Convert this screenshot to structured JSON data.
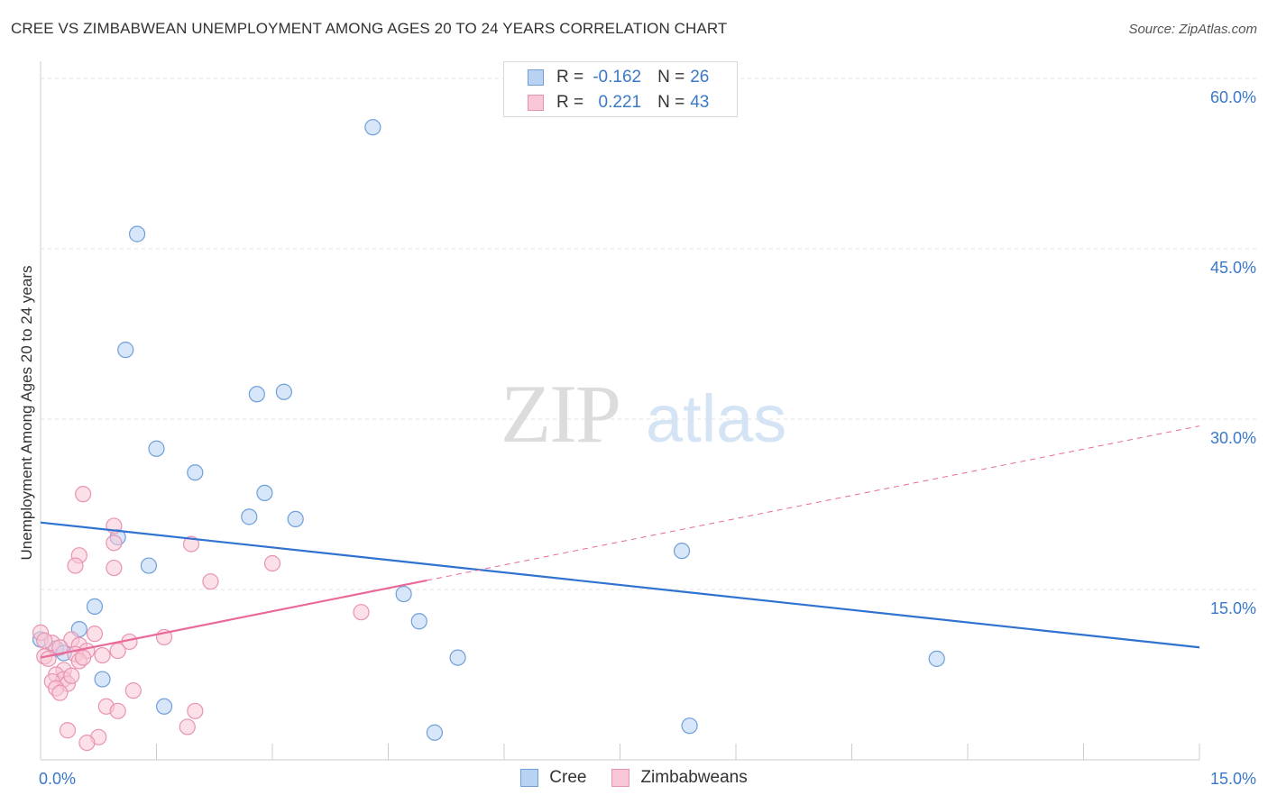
{
  "chart_data": {
    "type": "scatter",
    "title": "CREE VS ZIMBABWEAN UNEMPLOYMENT AMONG AGES 20 TO 24 YEARS CORRELATION CHART",
    "source": "Source: ZipAtlas.com",
    "xlabel": "",
    "ylabel": "Unemployment Among Ages 20 to 24 years",
    "xlim": [
      0,
      15
    ],
    "ylim": [
      0,
      62
    ],
    "x_tick_labels": [
      "0.0%",
      "15.0%"
    ],
    "y_ticks": [
      15,
      30,
      45,
      60
    ],
    "y_tick_labels": [
      "15.0%",
      "30.0%",
      "45.0%",
      "60.0%"
    ],
    "grid": true,
    "watermark": {
      "bold": "ZIP",
      "light": "atlas"
    },
    "legend": {
      "position": "top-center",
      "entries": [
        {
          "r_label": "R =",
          "r_value": "-0.162",
          "n_label": "N =",
          "n_value": "26"
        },
        {
          "r_label": "R =",
          "r_value": " 0.221",
          "n_label": "N =",
          "n_value": "43"
        }
      ]
    },
    "series": [
      {
        "name": "Cree",
        "fill": "#b7d2f3",
        "stroke": "#6f9fd8",
        "line_color": "#2f72d0",
        "trend": {
          "x0": 0,
          "y0": 20.9,
          "x1": 15,
          "y1": 9.9
        },
        "points": [
          {
            "x": 4.3,
            "y": 55.7
          },
          {
            "x": 1.25,
            "y": 46.3
          },
          {
            "x": 1.1,
            "y": 36.1
          },
          {
            "x": 2.8,
            "y": 32.2
          },
          {
            "x": 3.15,
            "y": 32.4
          },
          {
            "x": 1.5,
            "y": 27.4
          },
          {
            "x": 2.0,
            "y": 25.3
          },
          {
            "x": 2.9,
            "y": 23.5
          },
          {
            "x": 2.7,
            "y": 21.4
          },
          {
            "x": 3.3,
            "y": 21.2
          },
          {
            "x": 1.0,
            "y": 19.6
          },
          {
            "x": 8.3,
            "y": 18.4
          },
          {
            "x": 1.4,
            "y": 17.1
          },
          {
            "x": 4.7,
            "y": 14.6
          },
          {
            "x": 0.7,
            "y": 13.5
          },
          {
            "x": 4.9,
            "y": 12.2
          },
          {
            "x": 0.5,
            "y": 11.5
          },
          {
            "x": 0.0,
            "y": 10.6
          },
          {
            "x": 0.2,
            "y": 9.8
          },
          {
            "x": 0.3,
            "y": 9.4
          },
          {
            "x": 5.4,
            "y": 9.0
          },
          {
            "x": 11.6,
            "y": 8.9
          },
          {
            "x": 0.8,
            "y": 7.1
          },
          {
            "x": 1.6,
            "y": 4.7
          },
          {
            "x": 8.4,
            "y": 3.0
          },
          {
            "x": 5.1,
            "y": 2.4
          }
        ]
      },
      {
        "name": "Zimbabweans",
        "fill": "#f8c6d6",
        "stroke": "#e993b1",
        "line_color": "#e8699a",
        "trend": {
          "x0": 0,
          "y0": 9.0,
          "x1": 15,
          "y1": 29.4,
          "solid_until": 5.0
        },
        "points": [
          {
            "x": 0.55,
            "y": 23.4
          },
          {
            "x": 0.95,
            "y": 20.6
          },
          {
            "x": 0.95,
            "y": 19.1
          },
          {
            "x": 1.95,
            "y": 19.0
          },
          {
            "x": 0.5,
            "y": 18.0
          },
          {
            "x": 3.0,
            "y": 17.3
          },
          {
            "x": 0.45,
            "y": 17.1
          },
          {
            "x": 0.95,
            "y": 16.9
          },
          {
            "x": 2.2,
            "y": 15.7
          },
          {
            "x": 4.15,
            "y": 13.0
          },
          {
            "x": 0.0,
            "y": 11.2
          },
          {
            "x": 0.7,
            "y": 11.1
          },
          {
            "x": 1.6,
            "y": 10.8
          },
          {
            "x": 1.15,
            "y": 10.4
          },
          {
            "x": 0.4,
            "y": 10.6
          },
          {
            "x": 0.15,
            "y": 10.3
          },
          {
            "x": 0.5,
            "y": 10.1
          },
          {
            "x": 0.25,
            "y": 9.9
          },
          {
            "x": 0.6,
            "y": 9.6
          },
          {
            "x": 1.0,
            "y": 9.6
          },
          {
            "x": 0.45,
            "y": 9.3
          },
          {
            "x": 0.8,
            "y": 9.2
          },
          {
            "x": 0.05,
            "y": 9.1
          },
          {
            "x": 0.1,
            "y": 8.9
          },
          {
            "x": 0.5,
            "y": 8.7
          },
          {
            "x": 0.3,
            "y": 7.9
          },
          {
            "x": 0.2,
            "y": 7.5
          },
          {
            "x": 0.3,
            "y": 7.1
          },
          {
            "x": 0.15,
            "y": 6.9
          },
          {
            "x": 0.35,
            "y": 6.7
          },
          {
            "x": 0.2,
            "y": 6.3
          },
          {
            "x": 1.2,
            "y": 6.1
          },
          {
            "x": 0.25,
            "y": 5.9
          },
          {
            "x": 0.85,
            "y": 4.7
          },
          {
            "x": 1.0,
            "y": 4.3
          },
          {
            "x": 2.0,
            "y": 4.3
          },
          {
            "x": 1.9,
            "y": 2.9
          },
          {
            "x": 0.35,
            "y": 2.6
          },
          {
            "x": 0.75,
            "y": 2.0
          },
          {
            "x": 0.6,
            "y": 1.5
          },
          {
            "x": 0.05,
            "y": 10.5
          },
          {
            "x": 0.55,
            "y": 9.0
          },
          {
            "x": 0.4,
            "y": 7.4
          }
        ]
      }
    ]
  }
}
